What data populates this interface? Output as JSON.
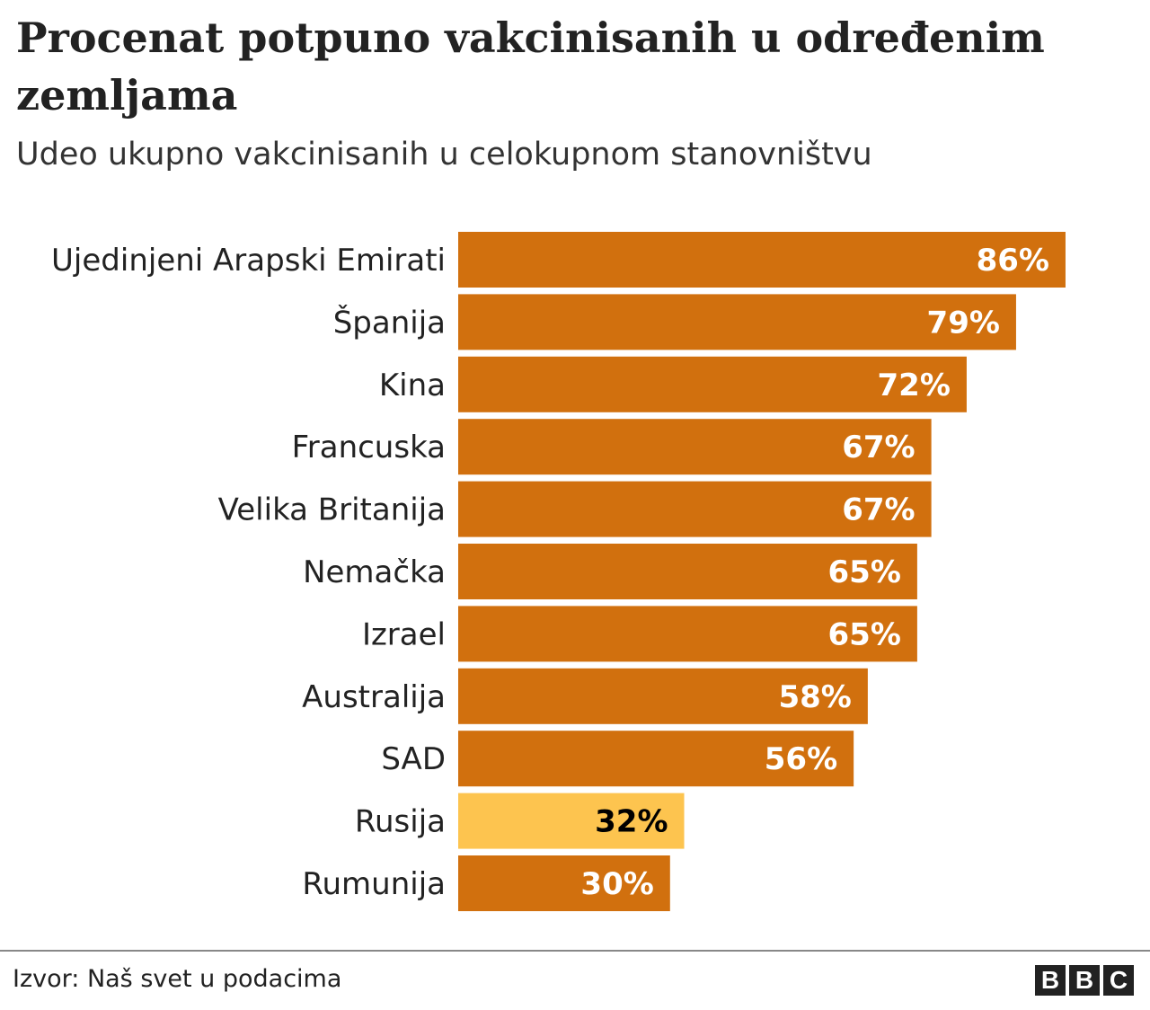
{
  "chart_data": {
    "type": "bar",
    "orientation": "horizontal",
    "title": "Procenat potpuno vakcinisanih u određenim zemljama",
    "subtitle": "Udeo ukupno vakcinisanih u celokupnom stanovništvu",
    "categories": [
      "Ujedinjeni Arapski Emirati",
      "Španija",
      "Kina",
      "Francuska",
      "Velika Britanija",
      "Nemačka",
      "Izrael",
      "Australija",
      "SAD",
      "Rusija",
      "Rumunija"
    ],
    "values": [
      86,
      79,
      72,
      67,
      67,
      65,
      65,
      58,
      56,
      32,
      30
    ],
    "value_labels": [
      "86%",
      "79%",
      "72%",
      "67%",
      "67%",
      "65%",
      "65%",
      "58%",
      "56%",
      "32%",
      "30%"
    ],
    "unit": "%",
    "xlim": [
      0,
      100
    ],
    "grid": false,
    "colors": {
      "default": "#D1700E",
      "highlight": "#FDC44F",
      "label_default": "#ffffff",
      "label_highlight": "#000000"
    },
    "highlighted": [
      "Rusija"
    ]
  },
  "footer": {
    "source": "Izvor: Naš svet u podacima",
    "logo": [
      "B",
      "B",
      "C"
    ]
  }
}
